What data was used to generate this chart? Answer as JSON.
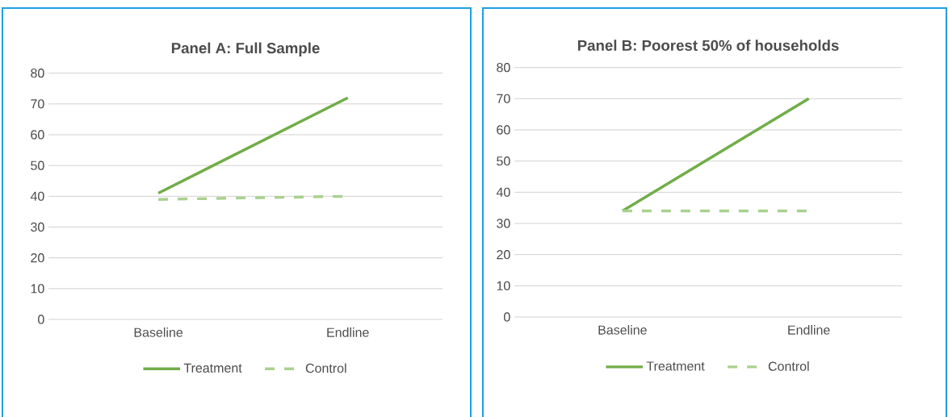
{
  "chart_data": [
    {
      "type": "line",
      "title": "Panel A: Full Sample",
      "categories": [
        "Baseline",
        "Endline"
      ],
      "series": [
        {
          "name": "Treatment",
          "color": "#70ad47",
          "values": [
            41,
            72
          ],
          "line_style": "solid"
        },
        {
          "name": "Control",
          "color": "#a9d18e",
          "values": [
            39,
            40
          ],
          "line_style": "dashed"
        }
      ],
      "ylim": [
        0,
        80
      ],
      "yticks": [
        0,
        10,
        20,
        30,
        40,
        50,
        60,
        70,
        80
      ],
      "grid": "y",
      "legend": "bottom"
    },
    {
      "type": "line",
      "title": "Panel B: Poorest 50% of households",
      "categories": [
        "Baseline",
        "Endline"
      ],
      "series": [
        {
          "name": "Treatment",
          "color": "#70ad47",
          "values": [
            34,
            70
          ],
          "line_style": "solid"
        },
        {
          "name": "Control",
          "color": "#a9d18e",
          "values": [
            34,
            34
          ],
          "line_style": "dashed"
        }
      ],
      "ylim": [
        0,
        80
      ],
      "yticks": [
        0,
        10,
        20,
        30,
        40,
        50,
        60,
        70,
        80
      ],
      "grid": "y",
      "legend": "bottom"
    }
  ]
}
